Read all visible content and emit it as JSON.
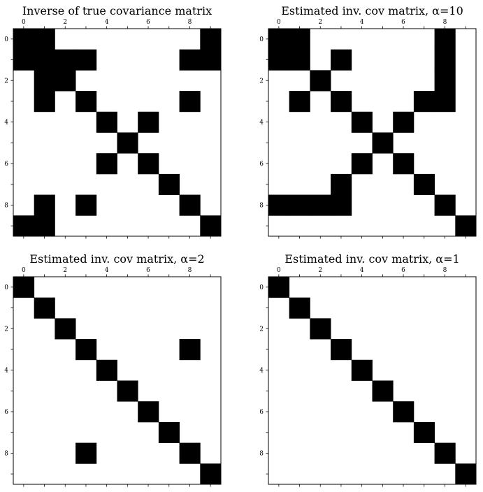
{
  "chart_data": [
    {
      "type": "heatmap",
      "title": "Inverse of true covariance matrix",
      "x_ticks": [
        "0",
        "2",
        "4",
        "6",
        "8"
      ],
      "y_ticks": [
        "0",
        "2",
        "4",
        "6",
        "8"
      ],
      "size": 10,
      "cells": [
        [
          0,
          0
        ],
        [
          0,
          1
        ],
        [
          0,
          9
        ],
        [
          1,
          0
        ],
        [
          1,
          1
        ],
        [
          1,
          2
        ],
        [
          1,
          3
        ],
        [
          1,
          8
        ],
        [
          1,
          9
        ],
        [
          2,
          1
        ],
        [
          2,
          2
        ],
        [
          3,
          1
        ],
        [
          3,
          3
        ],
        [
          3,
          8
        ],
        [
          4,
          4
        ],
        [
          4,
          6
        ],
        [
          5,
          5
        ],
        [
          6,
          4
        ],
        [
          6,
          6
        ],
        [
          7,
          7
        ],
        [
          8,
          1
        ],
        [
          8,
          3
        ],
        [
          8,
          8
        ],
        [
          9,
          0
        ],
        [
          9,
          1
        ],
        [
          9,
          9
        ]
      ]
    },
    {
      "type": "heatmap",
      "title": "Estimated inv. cov matrix, α=10",
      "x_ticks": [
        "0",
        "2",
        "4",
        "6",
        "8"
      ],
      "y_ticks": [
        "0",
        "2",
        "4",
        "6",
        "8"
      ],
      "size": 10,
      "cells": [
        [
          0,
          0
        ],
        [
          0,
          1
        ],
        [
          0,
          8
        ],
        [
          1,
          0
        ],
        [
          1,
          1
        ],
        [
          1,
          3
        ],
        [
          1,
          8
        ],
        [
          2,
          2
        ],
        [
          2,
          8
        ],
        [
          3,
          1
        ],
        [
          3,
          3
        ],
        [
          3,
          7
        ],
        [
          3,
          8
        ],
        [
          4,
          4
        ],
        [
          4,
          6
        ],
        [
          5,
          5
        ],
        [
          6,
          4
        ],
        [
          6,
          6
        ],
        [
          7,
          3
        ],
        [
          7,
          7
        ],
        [
          8,
          0
        ],
        [
          8,
          1
        ],
        [
          8,
          2
        ],
        [
          8,
          3
        ],
        [
          8,
          8
        ],
        [
          9,
          9
        ]
      ]
    },
    {
      "type": "heatmap",
      "title": "Estimated inv. cov matrix, α=2",
      "x_ticks": [
        "0",
        "2",
        "4",
        "6",
        "8"
      ],
      "y_ticks": [
        "0",
        "2",
        "4",
        "6",
        "8"
      ],
      "size": 10,
      "cells": [
        [
          0,
          0
        ],
        [
          1,
          1
        ],
        [
          2,
          2
        ],
        [
          3,
          3
        ],
        [
          3,
          8
        ],
        [
          4,
          4
        ],
        [
          5,
          5
        ],
        [
          6,
          6
        ],
        [
          7,
          7
        ],
        [
          8,
          3
        ],
        [
          8,
          8
        ],
        [
          9,
          9
        ]
      ]
    },
    {
      "type": "heatmap",
      "title": "Estimated inv. cov matrix, α=1",
      "x_ticks": [
        "0",
        "2",
        "4",
        "6",
        "8"
      ],
      "y_ticks": [
        "0",
        "2",
        "4",
        "6",
        "8"
      ],
      "size": 10,
      "cells": [
        [
          0,
          0
        ],
        [
          1,
          1
        ],
        [
          2,
          2
        ],
        [
          3,
          3
        ],
        [
          4,
          4
        ],
        [
          5,
          5
        ],
        [
          6,
          6
        ],
        [
          7,
          7
        ],
        [
          8,
          8
        ],
        [
          9,
          9
        ]
      ]
    }
  ],
  "colors": {
    "filled": "#000000",
    "empty": "#ffffff"
  }
}
